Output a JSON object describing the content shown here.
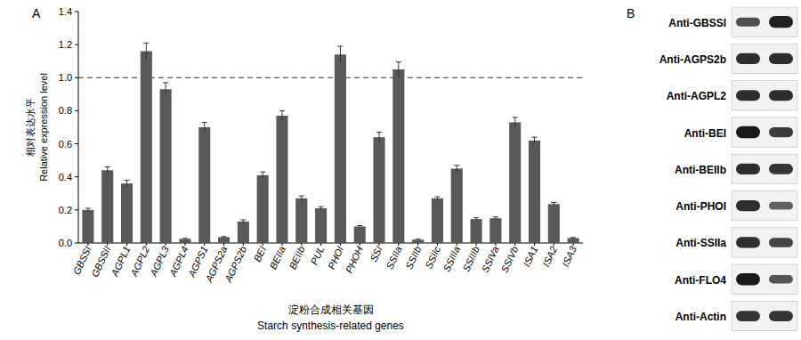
{
  "chart_data": {
    "type": "bar",
    "panel_label": "A",
    "categories": [
      "GBSSI",
      "GBSSII",
      "AGPL1",
      "AGPL2",
      "AGPL3",
      "AGPL4",
      "AGPS1",
      "AGPS2a",
      "AGPS2b",
      "BEI",
      "BEIIa",
      "BEIIb",
      "PUL",
      "PHOI",
      "PHOH",
      "SSI",
      "SSIIa",
      "SSIIb",
      "SSIIc",
      "SSIIIa",
      "SSIIIb",
      "SSIVa",
      "SSIVb",
      "ISA1",
      "ISA2",
      "ISA3"
    ],
    "values": [
      0.2,
      0.44,
      0.36,
      1.16,
      0.93,
      0.025,
      0.7,
      0.035,
      0.13,
      0.41,
      0.77,
      0.27,
      0.21,
      1.14,
      0.1,
      0.64,
      1.05,
      0.02,
      0.27,
      0.45,
      0.145,
      0.15,
      0.73,
      0.62,
      0.235,
      0.03
    ],
    "errors": [
      0.01,
      0.02,
      0.02,
      0.05,
      0.04,
      0.003,
      0.03,
      0.004,
      0.01,
      0.02,
      0.03,
      0.015,
      0.01,
      0.05,
      0.005,
      0.03,
      0.045,
      0.003,
      0.01,
      0.02,
      0.008,
      0.008,
      0.03,
      0.02,
      0.01,
      0.003
    ],
    "color": "#595959",
    "reference_value": 1,
    "ylim": [
      0,
      1.4
    ],
    "yticks": [
      {
        "value": 0,
        "label": "0.0"
      },
      0.2,
      0.4,
      0.6,
      0.8,
      {
        "value": 1,
        "label": "1.0"
      },
      1.2,
      1.4
    ],
    "y_label": [
      "相对表达水平",
      "Relative expression level"
    ],
    "x_label": [
      "淀粉合成相关基因",
      "Starch synthesis-related genes"
    ],
    "grid": false
  },
  "blot": {
    "panel_label": "B",
    "antibodies": [
      "Anti-GBSSI",
      "Anti-AGPS2b",
      "Anti-AGPL2",
      "Anti-BEI",
      "Anti-BEIIb",
      "Anti-PHOI",
      "Anti-SSIIa",
      "Anti-FLO4",
      "Anti-Actin"
    ]
  }
}
